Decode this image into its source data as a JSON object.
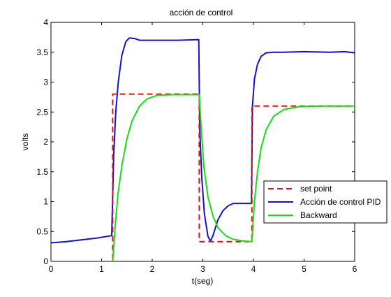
{
  "chart_data": {
    "type": "line",
    "title": "acción de control",
    "xlabel": "t(seg)",
    "ylabel": "volts",
    "xlim": [
      0,
      6
    ],
    "ylim": [
      0,
      4
    ],
    "x_ticks": [
      0,
      1,
      2,
      3,
      4,
      5,
      6
    ],
    "y_ticks": [
      0,
      0.5,
      1,
      1.5,
      2,
      2.5,
      3,
      3.5,
      4
    ],
    "x_tick_labels": [
      "0",
      "1",
      "2",
      "3",
      "4",
      "5",
      "6"
    ],
    "y_tick_labels": [
      "0",
      "0.5",
      "1",
      "1.5",
      "2",
      "2.5",
      "3",
      "3.5",
      "4"
    ],
    "grid": false,
    "legend_position": "lower-right",
    "series": [
      {
        "name": "set point",
        "color": "#e01010",
        "dash": "dashed",
        "points": [
          [
            0,
            0
          ],
          [
            1.22,
            0
          ],
          [
            1.22,
            2.8
          ],
          [
            2.93,
            2.8
          ],
          [
            2.93,
            0.33
          ],
          [
            3.97,
            0.33
          ],
          [
            3.97,
            2.6
          ],
          [
            6.0,
            2.6
          ]
        ]
      },
      {
        "name": "Acción de control PID",
        "color": "#1010d0",
        "dash": "solid",
        "points": [
          [
            0,
            0.31
          ],
          [
            0.3,
            0.33
          ],
          [
            0.6,
            0.36
          ],
          [
            0.9,
            0.39
          ],
          [
            1.2,
            0.43
          ],
          [
            1.24,
            1.8
          ],
          [
            1.28,
            2.5
          ],
          [
            1.33,
            3.0
          ],
          [
            1.4,
            3.45
          ],
          [
            1.48,
            3.68
          ],
          [
            1.55,
            3.74
          ],
          [
            1.65,
            3.73
          ],
          [
            1.75,
            3.7
          ],
          [
            2.0,
            3.7
          ],
          [
            2.5,
            3.7
          ],
          [
            2.92,
            3.71
          ],
          [
            2.94,
            2.2
          ],
          [
            2.98,
            1.4
          ],
          [
            3.03,
            0.8
          ],
          [
            3.1,
            0.42
          ],
          [
            3.15,
            0.34
          ],
          [
            3.2,
            0.43
          ],
          [
            3.3,
            0.7
          ],
          [
            3.4,
            0.85
          ],
          [
            3.5,
            0.93
          ],
          [
            3.6,
            0.97
          ],
          [
            3.96,
            0.97
          ],
          [
            3.98,
            2.6
          ],
          [
            4.02,
            3.05
          ],
          [
            4.08,
            3.3
          ],
          [
            4.15,
            3.43
          ],
          [
            4.25,
            3.49
          ],
          [
            4.4,
            3.5
          ],
          [
            4.6,
            3.5
          ],
          [
            5.0,
            3.51
          ],
          [
            5.5,
            3.5
          ],
          [
            5.8,
            3.51
          ],
          [
            6.0,
            3.49
          ]
        ]
      },
      {
        "name": "Backward",
        "color": "#10e010",
        "dash": "solid",
        "points": [
          [
            0,
            0
          ],
          [
            1.22,
            0
          ],
          [
            1.27,
            0.6
          ],
          [
            1.32,
            1.1
          ],
          [
            1.4,
            1.6
          ],
          [
            1.5,
            2.05
          ],
          [
            1.6,
            2.35
          ],
          [
            1.75,
            2.6
          ],
          [
            1.9,
            2.72
          ],
          [
            2.1,
            2.78
          ],
          [
            2.4,
            2.79
          ],
          [
            2.93,
            2.79
          ],
          [
            2.97,
            2.2
          ],
          [
            3.02,
            1.6
          ],
          [
            3.1,
            1.08
          ],
          [
            3.2,
            0.76
          ],
          [
            3.3,
            0.56
          ],
          [
            3.45,
            0.43
          ],
          [
            3.6,
            0.37
          ],
          [
            3.8,
            0.34
          ],
          [
            3.97,
            0.33
          ],
          [
            4.02,
            1.0
          ],
          [
            4.08,
            1.5
          ],
          [
            4.15,
            1.9
          ],
          [
            4.25,
            2.2
          ],
          [
            4.4,
            2.43
          ],
          [
            4.6,
            2.54
          ],
          [
            4.9,
            2.59
          ],
          [
            5.3,
            2.6
          ],
          [
            6.0,
            2.6
          ]
        ]
      }
    ]
  }
}
